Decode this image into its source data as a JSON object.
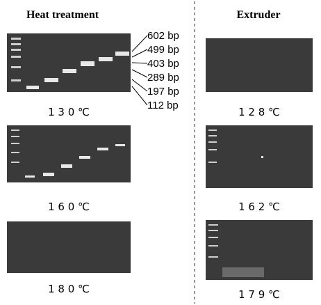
{
  "columns": [
    {
      "title": "Heat treatment",
      "panels": [
        {
          "label": "1 3 0 ℃"
        },
        {
          "label": "1 6 0 ℃"
        },
        {
          "label": "1 8 0 ℃"
        }
      ]
    },
    {
      "title": "Extruder",
      "panels": [
        {
          "label": "1 2 8 ℃"
        },
        {
          "label": "1 6 2 ℃"
        },
        {
          "label": "1 7 9 ℃"
        }
      ]
    }
  ],
  "markers": [
    "602 bp",
    "499 bp",
    "403 bp",
    "289 bp",
    "197 bp",
    "112 bp"
  ]
}
